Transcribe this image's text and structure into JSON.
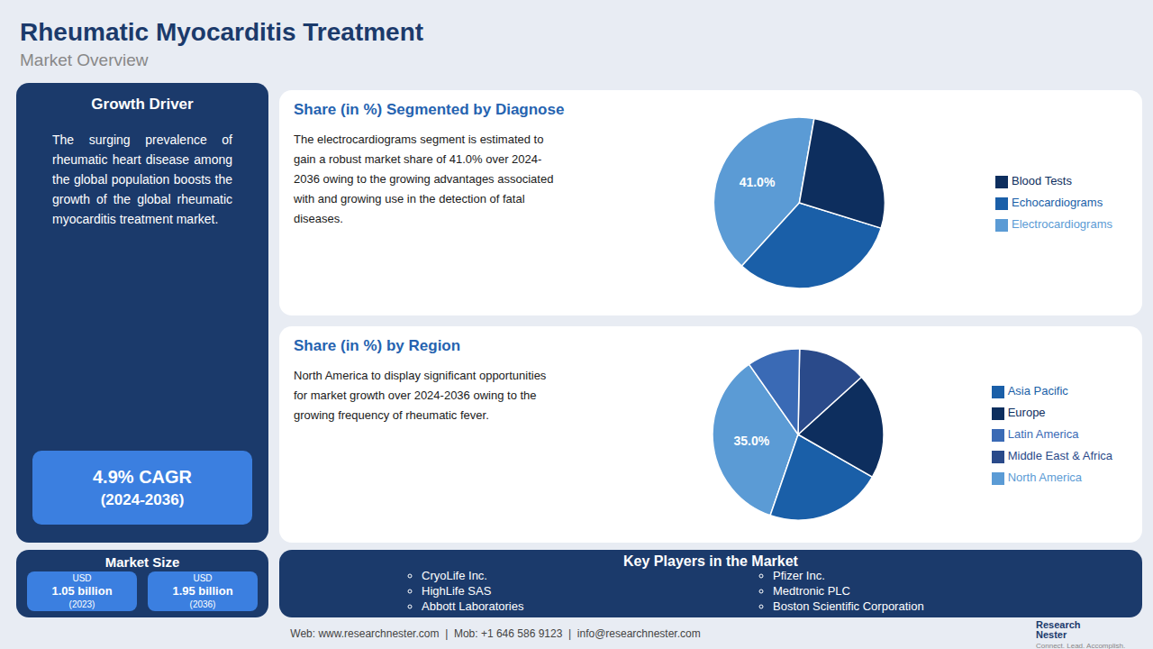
{
  "title": "Rheumatic Myocarditis Treatment",
  "subtitle": "Market Overview",
  "growth_driver": {
    "title": "Growth Driver",
    "text": "The surging prevalence of rheumatic heart disease among the global population boosts the growth of the global rheumatic myocarditis treatment market.",
    "cagr": [
      "4.9% CAGR",
      "(2024-2036)"
    ]
  },
  "market_size": {
    "title": "Market Size",
    "items": [
      [
        "USD",
        "1.05 billion",
        "(2023)"
      ],
      [
        "USD",
        "1.95 billion",
        "(2036)"
      ]
    ]
  },
  "chart_data": [
    {
      "type": "pie",
      "title": "Share (in %) Segmented by Diagnose",
      "text": "The electrocardiograms segment is estimated to\ngain a robust market share of 41.0% over 2024-\n2036 owing to the growing advantages associated\nwith and growing use in the detection of fatal\ndiseases.",
      "categories": [
        "Electrocardiograms",
        "Echocardiograms",
        "Blood Tests"
      ],
      "values": [
        41.0,
        32.0,
        27.0
      ],
      "colors": [
        "#5b9bd5",
        "#1a5fa8",
        "#0d2e5e"
      ],
      "annotation": "41.0%",
      "legend": "right"
    },
    {
      "type": "pie",
      "title": "Share (in %) by Region",
      "text": "North America to display significant opportunities\nfor market growth over 2024-2036 owing to the\ngrowing frequency of rheumatic fever.",
      "categories": [
        "North America",
        "Asia Pacific",
        "Europe",
        "Middle East & Africa",
        "Latin America"
      ],
      "values": [
        35.0,
        22.0,
        20.0,
        13.0,
        10.0
      ],
      "colors": [
        "#5b9bd5",
        "#1a5fa8",
        "#0d2e5e",
        "#2a4a8a",
        "#3a6ab5"
      ],
      "annotation": "35.0%",
      "legend": "right"
    }
  ],
  "key_players": {
    "title": "Key Players in the Market",
    "left": [
      "CryoLife Inc.",
      "HighLife SAS",
      "Abbott Laboratories"
    ],
    "right": [
      "Pfizer Inc.",
      "Medtronic PLC",
      "Boston Scientific Corporation"
    ]
  },
  "footer": "Web: www.researchnester.com  |  Mob: +1 646 586 9123  |  info@researchnester.com",
  "branding": [
    "Research",
    "Nester"
  ],
  "tagline": "Connect. Lead. Accomplish."
}
